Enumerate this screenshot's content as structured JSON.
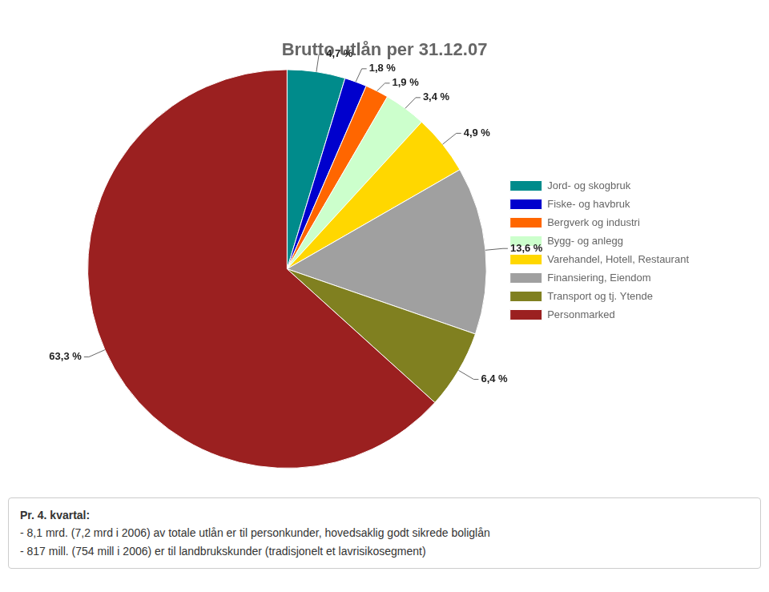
{
  "chart_data": {
    "type": "pie",
    "title": "Brutto utlån per 31.12.07",
    "categories": [
      "Jord- og skogbruk",
      "Fiske- og havbruk",
      "Bergverk og industri",
      "Bygg- og anlegg",
      "Varehandel, Hotell, Restaurant",
      "Finansiering, Eiendom",
      "Transport og tj. Ytende",
      "Personmarked"
    ],
    "values": [
      4.7,
      1.8,
      1.9,
      3.4,
      4.9,
      13.6,
      6.4,
      63.3
    ],
    "value_labels": [
      "4,7 %",
      "1,8 %",
      "1,9 %",
      "3,4 %",
      "4,9 %",
      "13,6 %",
      "6,4 %",
      "63,3 %"
    ],
    "colors": [
      "#008B8B",
      "#0000CD",
      "#FF6600",
      "#CCFFCC",
      "#FFD700",
      "#A0A0A0",
      "#808020",
      "#9B2020"
    ],
    "data_labels": true,
    "legend": "right",
    "annotations": [
      "Pr. 4. kvartal:",
      "- 8,1 mrd. (7,2 mrd i 2006) av totale utlån er til personkunder, hovedsaklig godt sikrede boliglån",
      "- 817 mill. (754 mill i 2006) er til landbrukskunder (tradisjonelt et lavrisikosegment)"
    ]
  }
}
